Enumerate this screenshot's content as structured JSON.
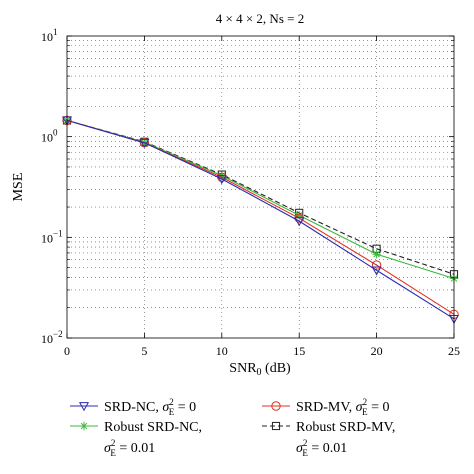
{
  "chart_data": {
    "type": "line",
    "title": "4 × 4 × 2, Ns = 2",
    "xlabel": "SNR",
    "xlabel_sub": "0",
    "xlabel_unit": " (dB)",
    "ylabel": "MSE",
    "y_scale": "log",
    "xlim": [
      0,
      25
    ],
    "ylim": [
      0.01,
      10
    ],
    "x_ticks": [
      0,
      5,
      10,
      15,
      20,
      25
    ],
    "x_tick_labels": [
      "0",
      "5",
      "10",
      "15",
      "20",
      "25"
    ],
    "y_ticks": [
      {
        "value": 0.01,
        "base": "10",
        "exp": "−2"
      },
      {
        "value": 0.1,
        "base": "10",
        "exp": "−1"
      },
      {
        "value": 1,
        "base": "10",
        "exp": "0"
      },
      {
        "value": 10,
        "base": "10",
        "exp": "1"
      }
    ],
    "grid": "dotted major and minor",
    "legend_position": "below-plot",
    "x": [
      0,
      5,
      10,
      15,
      20,
      25
    ],
    "series": [
      {
        "legend_name": "SRD-NC",
        "legend_cond": "σ",
        "legend_cond_sup": "2",
        "legend_cond_sub": "E",
        "legend_cond_val": " = 0",
        "values": [
          1.45,
          0.87,
          0.38,
          0.145,
          0.047,
          0.0155
        ],
        "color": "#2b2bb0",
        "marker": "triangle-down",
        "dash": "solid"
      },
      {
        "legend_name": "SRD-MV",
        "legend_cond": "σ",
        "legend_cond_sup": "2",
        "legend_cond_sub": "E",
        "legend_cond_val": " = 0",
        "values": [
          1.45,
          0.87,
          0.395,
          0.155,
          0.053,
          0.0172
        ],
        "color": "#e0301e",
        "marker": "circle",
        "dash": "solid"
      },
      {
        "legend_name": "Robust SRD-NC,",
        "legend_cond": "σ",
        "legend_cond_sup": "2",
        "legend_cond_sub": "E",
        "legend_cond_val": " = 0.01",
        "values": [
          1.45,
          0.88,
          0.41,
          0.165,
          0.068,
          0.039
        ],
        "color": "#3cb83c",
        "marker": "asterisk",
        "dash": "solid"
      },
      {
        "legend_name": "Robust SRD-MV,",
        "legend_cond": "σ",
        "legend_cond_sup": "2",
        "legend_cond_sub": "E",
        "legend_cond_val": " = 0.01",
        "values": [
          1.45,
          0.89,
          0.42,
          0.175,
          0.077,
          0.043
        ],
        "color": "#222222",
        "marker": "square",
        "dash": "dashed"
      }
    ]
  }
}
